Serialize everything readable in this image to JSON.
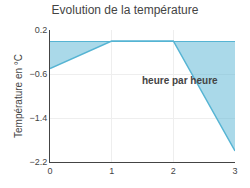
{
  "chart_data": {
    "type": "area",
    "title": "Evolution de la température",
    "ylabel": "Température en °C",
    "annotations": [
      "heure par heure"
    ],
    "x": [
      0,
      1,
      2,
      3
    ],
    "values": [
      -0.5,
      0.0,
      0.0,
      -2.0
    ],
    "color": "#56b4d3",
    "xlim": [
      0,
      3
    ],
    "ylim": [
      -2.2,
      0.2
    ],
    "xticks": [
      0,
      1,
      2,
      3
    ],
    "yticks": [
      0.2,
      -0.6,
      -1.4,
      -2.2
    ],
    "grid": true
  }
}
